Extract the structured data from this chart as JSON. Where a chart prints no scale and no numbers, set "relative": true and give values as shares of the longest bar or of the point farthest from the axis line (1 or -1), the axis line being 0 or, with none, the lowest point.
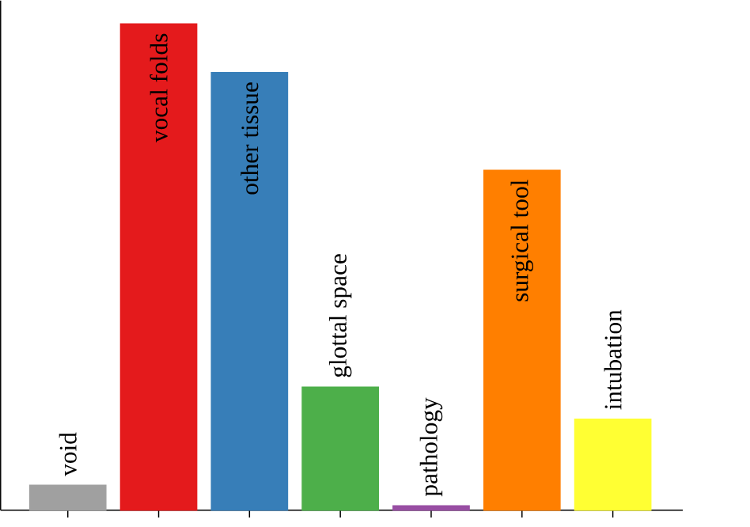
{
  "chart_data": {
    "type": "bar",
    "relative": true,
    "categories": [
      "void",
      "vocal folds",
      "other tissue",
      "glottal space",
      "pathology",
      "surgical tool",
      "intubation"
    ],
    "values": [
      0.051,
      1,
      0.9,
      0.253,
      0.009,
      0.699,
      0.187
    ],
    "colors": [
      "#a0a0a0",
      "#e41a1c",
      "#377eb8",
      "#4daf4a",
      "#984ea3",
      "#ff7f00",
      "#ffff33"
    ]
  }
}
